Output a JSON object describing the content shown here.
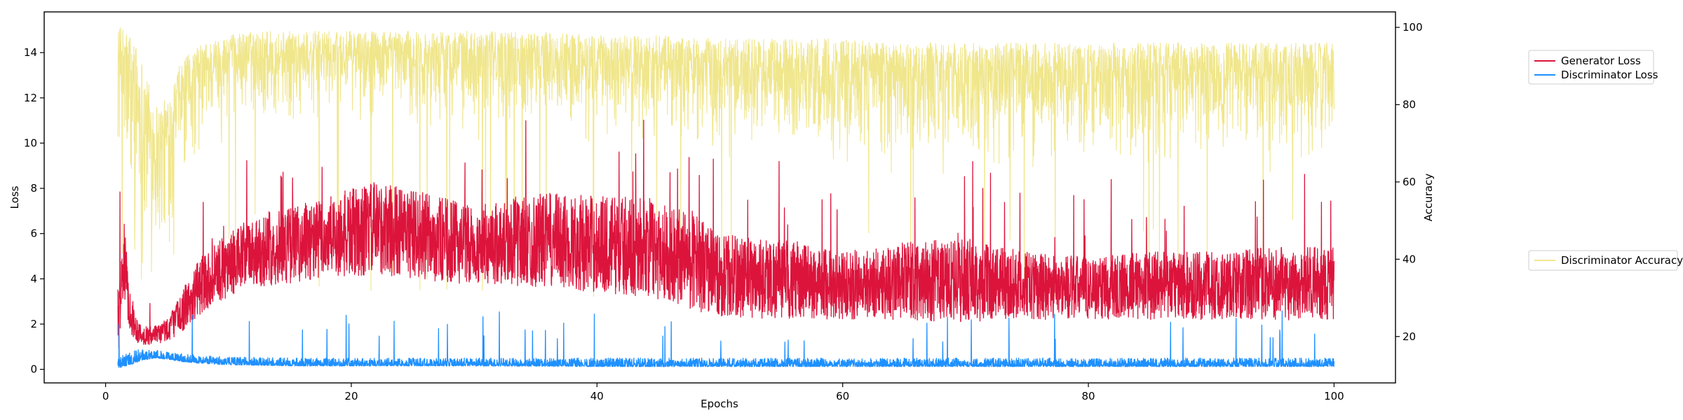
{
  "chart_data": {
    "type": "line",
    "xlabel": "Epochs",
    "ylabel_left": "Loss",
    "ylabel_right": "Accuracy",
    "xlim": [
      -5,
      105
    ],
    "ylim_left": [
      -0.6,
      15.8
    ],
    "ylim_right": [
      8,
      104
    ],
    "x_ticks": [
      0,
      20,
      40,
      60,
      80,
      100
    ],
    "y_left_ticks": [
      0,
      2,
      4,
      6,
      8,
      10,
      12,
      14
    ],
    "y_right_ticks": [
      20,
      40,
      60,
      80,
      100
    ],
    "grid": false,
    "legend_left_axis": {
      "placement": "outside-right-top",
      "entries": [
        "Generator Loss",
        "Discriminator Loss"
      ]
    },
    "legend_right_axis": {
      "placement": "outside-right-middle",
      "entries": [
        "Discriminator Accuracy"
      ]
    },
    "series": [
      {
        "name": "Discriminator Accuracy",
        "axis": "right",
        "color": "#f0e68c",
        "x": [
          1,
          1.5,
          2,
          2.5,
          3,
          3.5,
          4,
          4.5,
          5,
          5.5,
          6,
          7,
          8,
          9,
          10,
          12,
          15,
          20,
          25,
          30,
          35,
          40,
          45,
          50,
          55,
          60,
          65,
          70,
          75,
          80,
          85,
          90,
          95,
          100
        ],
        "upper": [
          100,
          100,
          99,
          96,
          92,
          86,
          82,
          80,
          82,
          86,
          90,
          94,
          96,
          97,
          98,
          99,
          99,
          99,
          99,
          99,
          99,
          98,
          98,
          97,
          97,
          97,
          96,
          96,
          96,
          96,
          96,
          96,
          96,
          96
        ],
        "lower": [
          62,
          46,
          38,
          32,
          28,
          26,
          27,
          30,
          35,
          42,
          50,
          58,
          64,
          68,
          70,
          72,
          72,
          72,
          70,
          70,
          70,
          68,
          66,
          62,
          60,
          60,
          60,
          60,
          60,
          60,
          60,
          60,
          60,
          60
        ]
      },
      {
        "name": "Generator Loss",
        "axis": "left",
        "color": "#dc143c",
        "x": [
          1,
          1.5,
          2,
          2.5,
          3,
          4,
          5,
          6,
          7,
          8,
          10,
          12,
          15,
          18,
          20,
          22,
          25,
          28,
          30,
          33,
          36,
          40,
          44,
          46,
          48,
          50,
          55,
          60,
          65,
          70,
          72,
          75,
          80,
          85,
          90,
          95,
          100
        ],
        "upper": [
          3.8,
          6.5,
          3.5,
          2.4,
          1.9,
          1.9,
          2.3,
          3.2,
          4.3,
          5.2,
          6.0,
          6.8,
          7.2,
          7.6,
          8.0,
          8.3,
          8.0,
          7.5,
          7.2,
          7.6,
          7.8,
          7.7,
          7.6,
          7.4,
          7.0,
          6.0,
          5.8,
          5.2,
          5.6,
          5.8,
          5.5,
          5.2,
          5.0,
          5.2,
          5.2,
          5.4,
          5.4
        ],
        "lower": [
          0.5,
          3.2,
          1.6,
          1.2,
          1.1,
          1.0,
          1.2,
          1.6,
          2.0,
          2.6,
          3.2,
          3.6,
          3.8,
          4.0,
          4.0,
          4.2,
          4.0,
          3.8,
          3.8,
          3.7,
          3.6,
          3.4,
          3.2,
          3.0,
          2.6,
          2.3,
          2.2,
          2.2,
          2.2,
          2.0,
          2.2,
          2.2,
          2.2,
          2.2,
          2.2,
          2.2,
          2.1
        ]
      },
      {
        "name": "Discriminator Loss",
        "axis": "left",
        "color": "#1e90ff",
        "x": [
          1,
          2,
          3,
          4,
          5,
          6,
          8,
          10,
          15,
          20,
          30,
          40,
          50,
          60,
          70,
          80,
          90,
          100
        ],
        "upper": [
          0.5,
          0.8,
          0.9,
          0.9,
          0.8,
          0.7,
          0.6,
          0.55,
          0.5,
          0.5,
          0.5,
          0.5,
          0.5,
          0.5,
          0.5,
          0.5,
          0.5,
          0.5
        ],
        "lower": [
          0.05,
          0.2,
          0.4,
          0.5,
          0.45,
          0.35,
          0.25,
          0.2,
          0.15,
          0.15,
          0.15,
          0.12,
          0.12,
          0.12,
          0.12,
          0.12,
          0.12,
          0.12
        ]
      }
    ]
  }
}
